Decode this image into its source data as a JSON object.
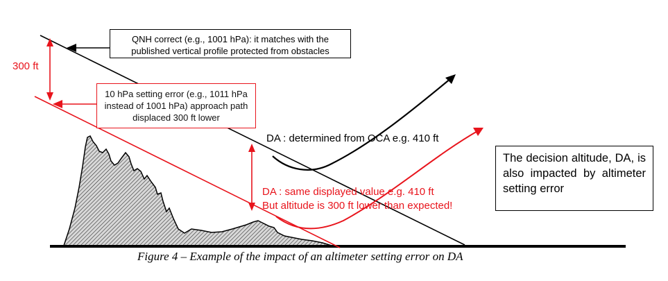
{
  "figure": {
    "caption": "Figure 4 – Example of the impact of an altimeter setting error on DA",
    "colors": {
      "correct_path": "#000000",
      "error_path": "#e8141c",
      "terrain_fill": "hatched-gray"
    }
  },
  "labels": {
    "offset": "300 ft",
    "qnh_correct": [
      "QNH correct (e.g., 1001 hPa): it matches with the",
      "published vertical profile protected from obstacles"
    ],
    "setting_error": [
      "10 hPa setting error (e.g., 1011 hPa",
      "instead of 1001 hPa) approach path",
      "displaced 300 ft lower"
    ],
    "da_black": "DA : determined from OCA e.g. 410 ft",
    "da_red_line1": "DA : same displayed value e.g. 410 ft",
    "da_red_line2": "But altitude is 300 ft lower than expected!",
    "note": "The decision altitude, DA, is also impacted by altimeter setting error"
  }
}
